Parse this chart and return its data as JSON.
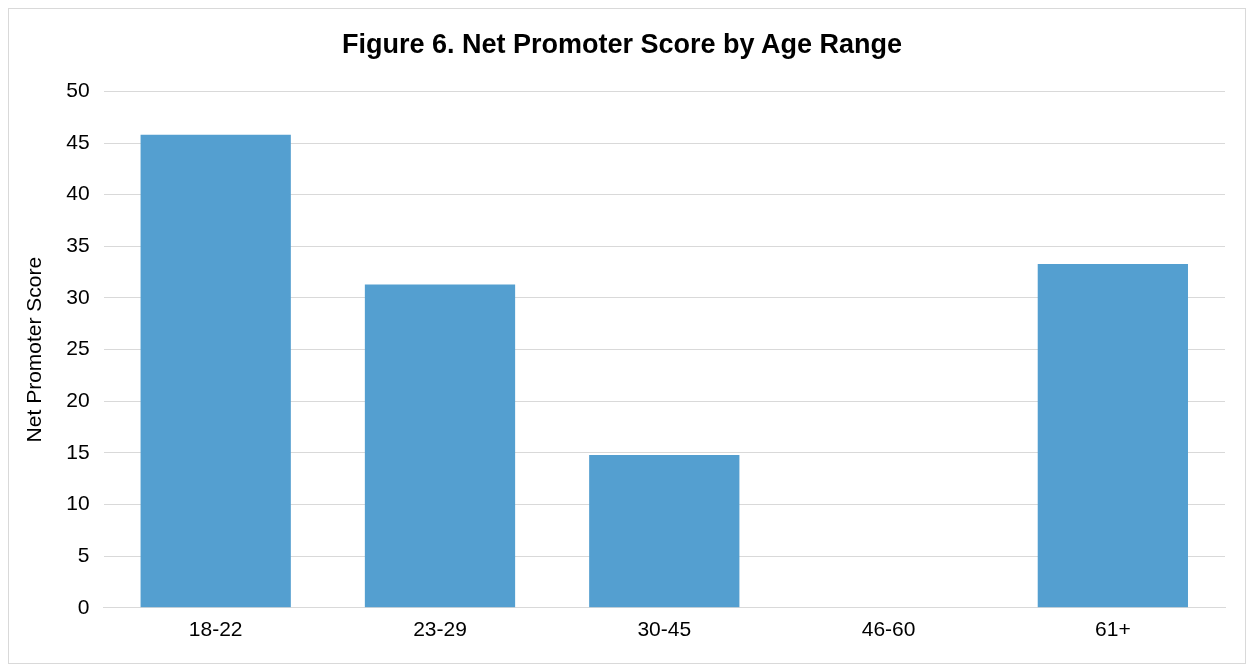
{
  "chart_data": {
    "type": "bar",
    "title": "Figure 6. Net Promoter Score by Age Range",
    "ylabel": "Net Promoter Score",
    "categories": [
      "18-22",
      "23-29",
      "30-45",
      "46-60",
      "61+"
    ],
    "values": [
      45.8,
      31.3,
      14.8,
      0,
      33.3
    ],
    "color": "#549fd0",
    "ylim": [
      0,
      50
    ],
    "yticks": [
      0,
      5,
      10,
      15,
      20,
      25,
      30,
      35,
      40,
      45,
      50
    ],
    "grid": "y"
  }
}
